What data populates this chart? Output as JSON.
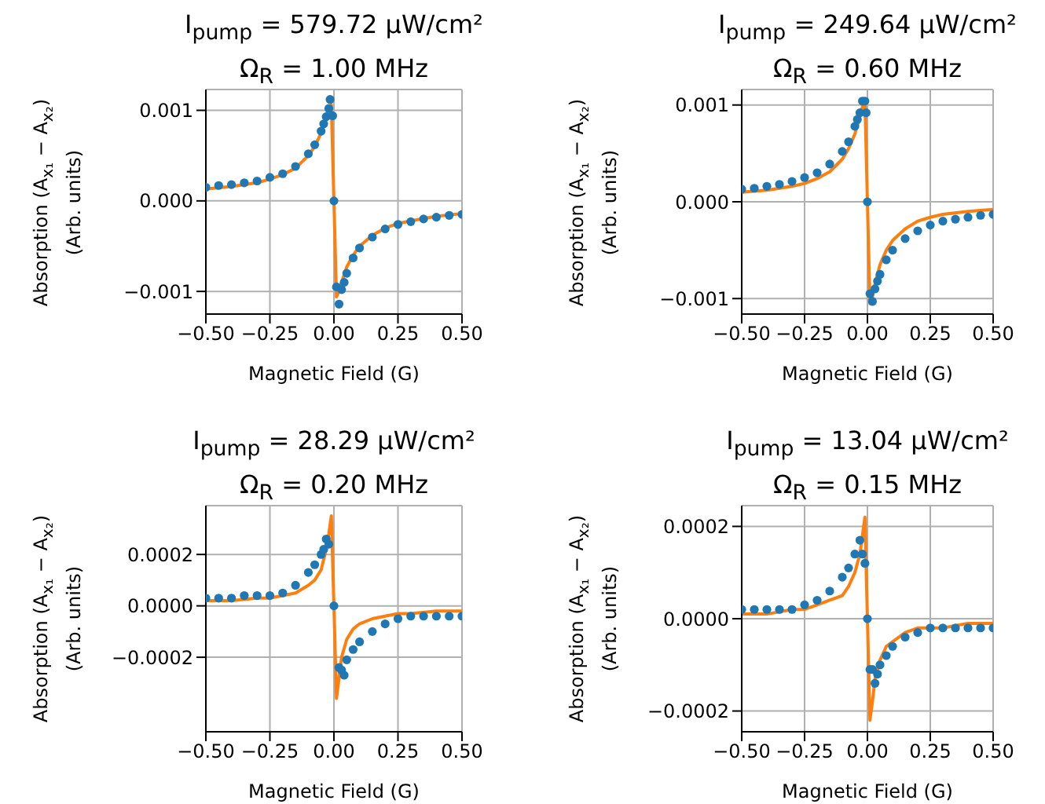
{
  "chart_data": [
    {
      "type": "scatter",
      "title": "I$_{pump}$ = 579.72 μW/cm²",
      "subtitle": "Ω$_{R}$ = 1.00 MHz",
      "xlabel": "Magnetic Field (G)",
      "ylabel": "Absorption (A$_{x₁}$ − A$_{x₂}$)\n(Arb. units)",
      "grid": true,
      "xlim": [
        -0.5,
        0.5
      ],
      "xticks": [
        {
          "value": -0.5,
          "label": "−0.50"
        },
        {
          "value": -0.25,
          "label": "−0.25"
        },
        {
          "value": 0,
          "label": "0.00"
        },
        {
          "value": 0.25,
          "label": "0.25"
        },
        {
          "value": 0.5,
          "label": "0.50"
        }
      ],
      "ylim": [
        -0.00125,
        0.00123
      ],
      "yticks": [
        {
          "value": -0.001,
          "label": "−0.001"
        },
        {
          "value": 0,
          "label": "0.000"
        },
        {
          "value": 0.001,
          "label": "0.001"
        }
      ],
      "series": [
        {
          "marker": "circle",
          "color": "#1f77b4",
          "x": [
            -0.5,
            -0.45,
            -0.4,
            -0.35,
            -0.3,
            -0.25,
            -0.2,
            -0.15,
            -0.1,
            -0.075,
            -0.05,
            -0.04,
            -0.03,
            -0.02,
            -0.015,
            -0.005,
            0,
            0.01,
            0.02,
            0.03,
            0.04,
            0.05,
            0.075,
            0.1,
            0.15,
            0.2,
            0.25,
            0.3,
            0.35,
            0.4,
            0.45,
            0.5
          ],
          "values": [
            0.00015,
            0.00017,
            0.00018,
            0.0002,
            0.00022,
            0.00026,
            0.0003,
            0.00038,
            0.00052,
            0.00062,
            0.00077,
            0.00085,
            0.00093,
            0.00102,
            0.00112,
            0.00094,
            0,
            -0.00095,
            -0.00114,
            -0.00098,
            -0.0009,
            -0.0008,
            -0.00063,
            -0.00052,
            -0.0004,
            -0.00031,
            -0.00026,
            -0.00023,
            -0.0002,
            -0.00018,
            -0.00016,
            -0.00015
          ]
        },
        {
          "type": "line",
          "marker": "none",
          "color": "#ff7f0e",
          "x": [
            -0.5,
            -0.4,
            -0.3,
            -0.25,
            -0.2,
            -0.15,
            -0.1,
            -0.075,
            -0.05,
            -0.03,
            -0.02,
            -0.01,
            0,
            0.01,
            0.02,
            0.03,
            0.05,
            0.075,
            0.1,
            0.15,
            0.2,
            0.25,
            0.3,
            0.4,
            0.5
          ],
          "values": [
            0.00013,
            0.00016,
            0.0002,
            0.00024,
            0.00029,
            0.00036,
            0.0005,
            0.0006,
            0.00075,
            0.0009,
            0.001,
            0.00106,
            0,
            -0.00106,
            -0.001,
            -0.0009,
            -0.00073,
            -0.0006,
            -0.0005,
            -0.00038,
            -0.0003,
            -0.00025,
            -0.00022,
            -0.00017,
            -0.00014
          ]
        }
      ]
    },
    {
      "type": "scatter",
      "title": "I$_{pump}$ = 249.64 μW/cm²",
      "subtitle": "Ω$_{R}$ = 0.60 MHz",
      "xlabel": "Magnetic Field (G)",
      "ylabel": "Absorption (A$_{x₁}$ − A$_{x₂}$)\n(Arb. units)",
      "grid": true,
      "xlim": [
        -0.5,
        0.5
      ],
      "xticks": [
        {
          "value": -0.5,
          "label": "−0.50"
        },
        {
          "value": -0.25,
          "label": "−0.25"
        },
        {
          "value": 0,
          "label": "0.00"
        },
        {
          "value": 0.25,
          "label": "0.25"
        },
        {
          "value": 0.5,
          "label": "0.50"
        }
      ],
      "ylim": [
        -0.00116,
        0.00116
      ],
      "yticks": [
        {
          "value": -0.001,
          "label": "−0.001"
        },
        {
          "value": 0,
          "label": "0.000"
        },
        {
          "value": 0.001,
          "label": "0.001"
        }
      ],
      "series": [
        {
          "marker": "circle",
          "color": "#1f77b4",
          "x": [
            -0.5,
            -0.45,
            -0.4,
            -0.35,
            -0.3,
            -0.25,
            -0.2,
            -0.15,
            -0.1,
            -0.075,
            -0.05,
            -0.04,
            -0.03,
            -0.02,
            -0.01,
            -0.005,
            0,
            0.01,
            0.02,
            0.03,
            0.04,
            0.05,
            0.075,
            0.1,
            0.15,
            0.2,
            0.25,
            0.3,
            0.35,
            0.4,
            0.45,
            0.5
          ],
          "values": [
            0.00013,
            0.00014,
            0.00016,
            0.00018,
            0.00021,
            0.00025,
            0.0003,
            0.00039,
            0.00052,
            0.00062,
            0.00078,
            0.00085,
            0.00092,
            0.00104,
            0.00104,
            0.00092,
            0,
            -0.00095,
            -0.00103,
            -0.0009,
            -0.00082,
            -0.00075,
            -0.0006,
            -0.0005,
            -0.00038,
            -0.0003,
            -0.00024,
            -0.0002,
            -0.00018,
            -0.00016,
            -0.00014,
            -0.00013
          ]
        },
        {
          "type": "line",
          "marker": "none",
          "color": "#ff7f0e",
          "x": [
            -0.5,
            -0.4,
            -0.3,
            -0.25,
            -0.2,
            -0.15,
            -0.1,
            -0.075,
            -0.05,
            -0.03,
            -0.02,
            -0.01,
            0,
            0.01,
            0.02,
            0.03,
            0.05,
            0.075,
            0.1,
            0.15,
            0.2,
            0.25,
            0.3,
            0.4,
            0.5
          ],
          "values": [
            0.0001,
            0.00012,
            0.00016,
            0.00019,
            0.00024,
            0.00031,
            0.00044,
            0.00055,
            0.0007,
            0.00088,
            0.00098,
            0.00105,
            0,
            -0.00105,
            -0.00098,
            -0.00085,
            -0.00065,
            -0.0005,
            -0.0004,
            -0.00028,
            -0.0002,
            -0.00016,
            -0.00013,
            -0.0001,
            -8e-05
          ]
        }
      ]
    },
    {
      "type": "scatter",
      "title": "I$_{pump}$ = 28.29 μW/cm²",
      "subtitle": "Ω$_{R}$ = 0.20 MHz",
      "xlabel": "Magnetic Field (G)",
      "ylabel": "Absorption (A$_{x₁}$ − A$_{x₂}$)\n(Arb. units)",
      "grid": true,
      "xlim": [
        -0.5,
        0.5
      ],
      "xticks": [
        {
          "value": -0.5,
          "label": "−0.50"
        },
        {
          "value": -0.25,
          "label": "−0.25"
        },
        {
          "value": 0,
          "label": "0.00"
        },
        {
          "value": 0.25,
          "label": "0.25"
        },
        {
          "value": 0.5,
          "label": "0.50"
        }
      ],
      "ylim": [
        -0.00049,
        0.00039
      ],
      "yticks": [
        {
          "value": -0.0002,
          "label": "−0.0002"
        },
        {
          "value": 0,
          "label": "0.0000"
        },
        {
          "value": 0.0002,
          "label": "0.0002"
        }
      ],
      "series": [
        {
          "marker": "circle",
          "color": "#1f77b4",
          "x": [
            -0.5,
            -0.45,
            -0.4,
            -0.35,
            -0.3,
            -0.25,
            -0.2,
            -0.15,
            -0.1,
            -0.075,
            -0.05,
            -0.04,
            -0.03,
            -0.02,
            0,
            0.02,
            0.03,
            0.04,
            0.05,
            0.075,
            0.1,
            0.15,
            0.2,
            0.25,
            0.3,
            0.35,
            0.4,
            0.45,
            0.5
          ],
          "values": [
            3e-05,
            3e-05,
            3e-05,
            4e-05,
            4e-05,
            4e-05,
            5e-05,
            8e-05,
            0.00013,
            0.00016,
            0.0002,
            0.00022,
            0.00026,
            0.00024,
            0,
            -0.00024,
            -0.00025,
            -0.00027,
            -0.00021,
            -0.00017,
            -0.00014,
            -0.0001,
            -7e-05,
            -5e-05,
            -4e-05,
            -4e-05,
            -4e-05,
            -4e-05,
            -4e-05
          ]
        },
        {
          "type": "line",
          "marker": "none",
          "color": "#ff7f0e",
          "x": [
            -0.5,
            -0.4,
            -0.3,
            -0.25,
            -0.2,
            -0.15,
            -0.1,
            -0.075,
            -0.05,
            -0.03,
            -0.02,
            -0.01,
            0,
            0.01,
            0.02,
            0.03,
            0.05,
            0.075,
            0.1,
            0.15,
            0.2,
            0.25,
            0.3,
            0.4,
            0.5
          ],
          "values": [
            2e-05,
            2e-05,
            3e-05,
            3e-05,
            4e-05,
            5e-05,
            8e-05,
            0.0001,
            0.00014,
            0.00022,
            0.00028,
            0.00035,
            0,
            -0.00036,
            -0.00028,
            -0.0002,
            -0.00013,
            -9e-05,
            -7e-05,
            -5e-05,
            -4e-05,
            -3e-05,
            -3e-05,
            -2e-05,
            -2e-05
          ]
        }
      ]
    },
    {
      "type": "scatter",
      "title": "I$_{pump}$ = 13.04 μW/cm²",
      "subtitle": "Ω$_{R}$ = 0.15 MHz",
      "xlabel": "Magnetic Field (G)",
      "ylabel": "Absorption (A$_{x₁}$ − A$_{x₂}$)\n(Arb. units)",
      "grid": true,
      "xlim": [
        -0.5,
        0.5
      ],
      "xticks": [
        {
          "value": -0.5,
          "label": "−0.50"
        },
        {
          "value": -0.25,
          "label": "−0.25"
        },
        {
          "value": 0,
          "label": "0.00"
        },
        {
          "value": 0.25,
          "label": "0.25"
        },
        {
          "value": 0.5,
          "label": "0.50"
        }
      ],
      "ylim": [
        -0.000245,
        0.000245
      ],
      "yticks": [
        {
          "value": -0.0002,
          "label": "−0.0002"
        },
        {
          "value": 0,
          "label": "0.0000"
        },
        {
          "value": 0.0002,
          "label": "0.0002"
        }
      ],
      "series": [
        {
          "marker": "circle",
          "color": "#1f77b4",
          "x": [
            -0.5,
            -0.45,
            -0.4,
            -0.35,
            -0.3,
            -0.25,
            -0.2,
            -0.15,
            -0.1,
            -0.075,
            -0.05,
            -0.03,
            -0.02,
            -0.01,
            0,
            0.01,
            0.02,
            0.03,
            0.04,
            0.05,
            0.075,
            0.1,
            0.15,
            0.2,
            0.25,
            0.3,
            0.35,
            0.4,
            0.45,
            0.5
          ],
          "values": [
            2e-05,
            2e-05,
            2e-05,
            2e-05,
            2e-05,
            3e-05,
            4e-05,
            6e-05,
            9e-05,
            0.00011,
            0.00014,
            0.00017,
            0.00014,
            0.00012,
            0,
            -0.00011,
            -0.00011,
            -0.00014,
            -0.00012,
            -0.0001,
            -8e-05,
            -6e-05,
            -4e-05,
            -3e-05,
            -2e-05,
            -2e-05,
            -2e-05,
            -2e-05,
            -2e-05,
            -2e-05
          ]
        },
        {
          "type": "line",
          "marker": "none",
          "color": "#ff7f0e",
          "x": [
            -0.5,
            -0.4,
            -0.3,
            -0.25,
            -0.2,
            -0.15,
            -0.1,
            -0.075,
            -0.05,
            -0.03,
            -0.02,
            -0.01,
            0,
            0.01,
            0.02,
            0.03,
            0.05,
            0.075,
            0.1,
            0.15,
            0.2,
            0.25,
            0.3,
            0.4,
            0.5
          ],
          "values": [
            1e-05,
            1e-05,
            2e-05,
            2e-05,
            3e-05,
            4e-05,
            5e-05,
            7e-05,
            0.0001,
            0.00014,
            0.00018,
            0.00022,
            0,
            -0.00022,
            -0.00018,
            -0.00013,
            -9e-05,
            -6e-05,
            -5e-05,
            -3e-05,
            -2e-05,
            -2e-05,
            -2e-05,
            -1e-05,
            -1e-05
          ]
        }
      ]
    }
  ]
}
